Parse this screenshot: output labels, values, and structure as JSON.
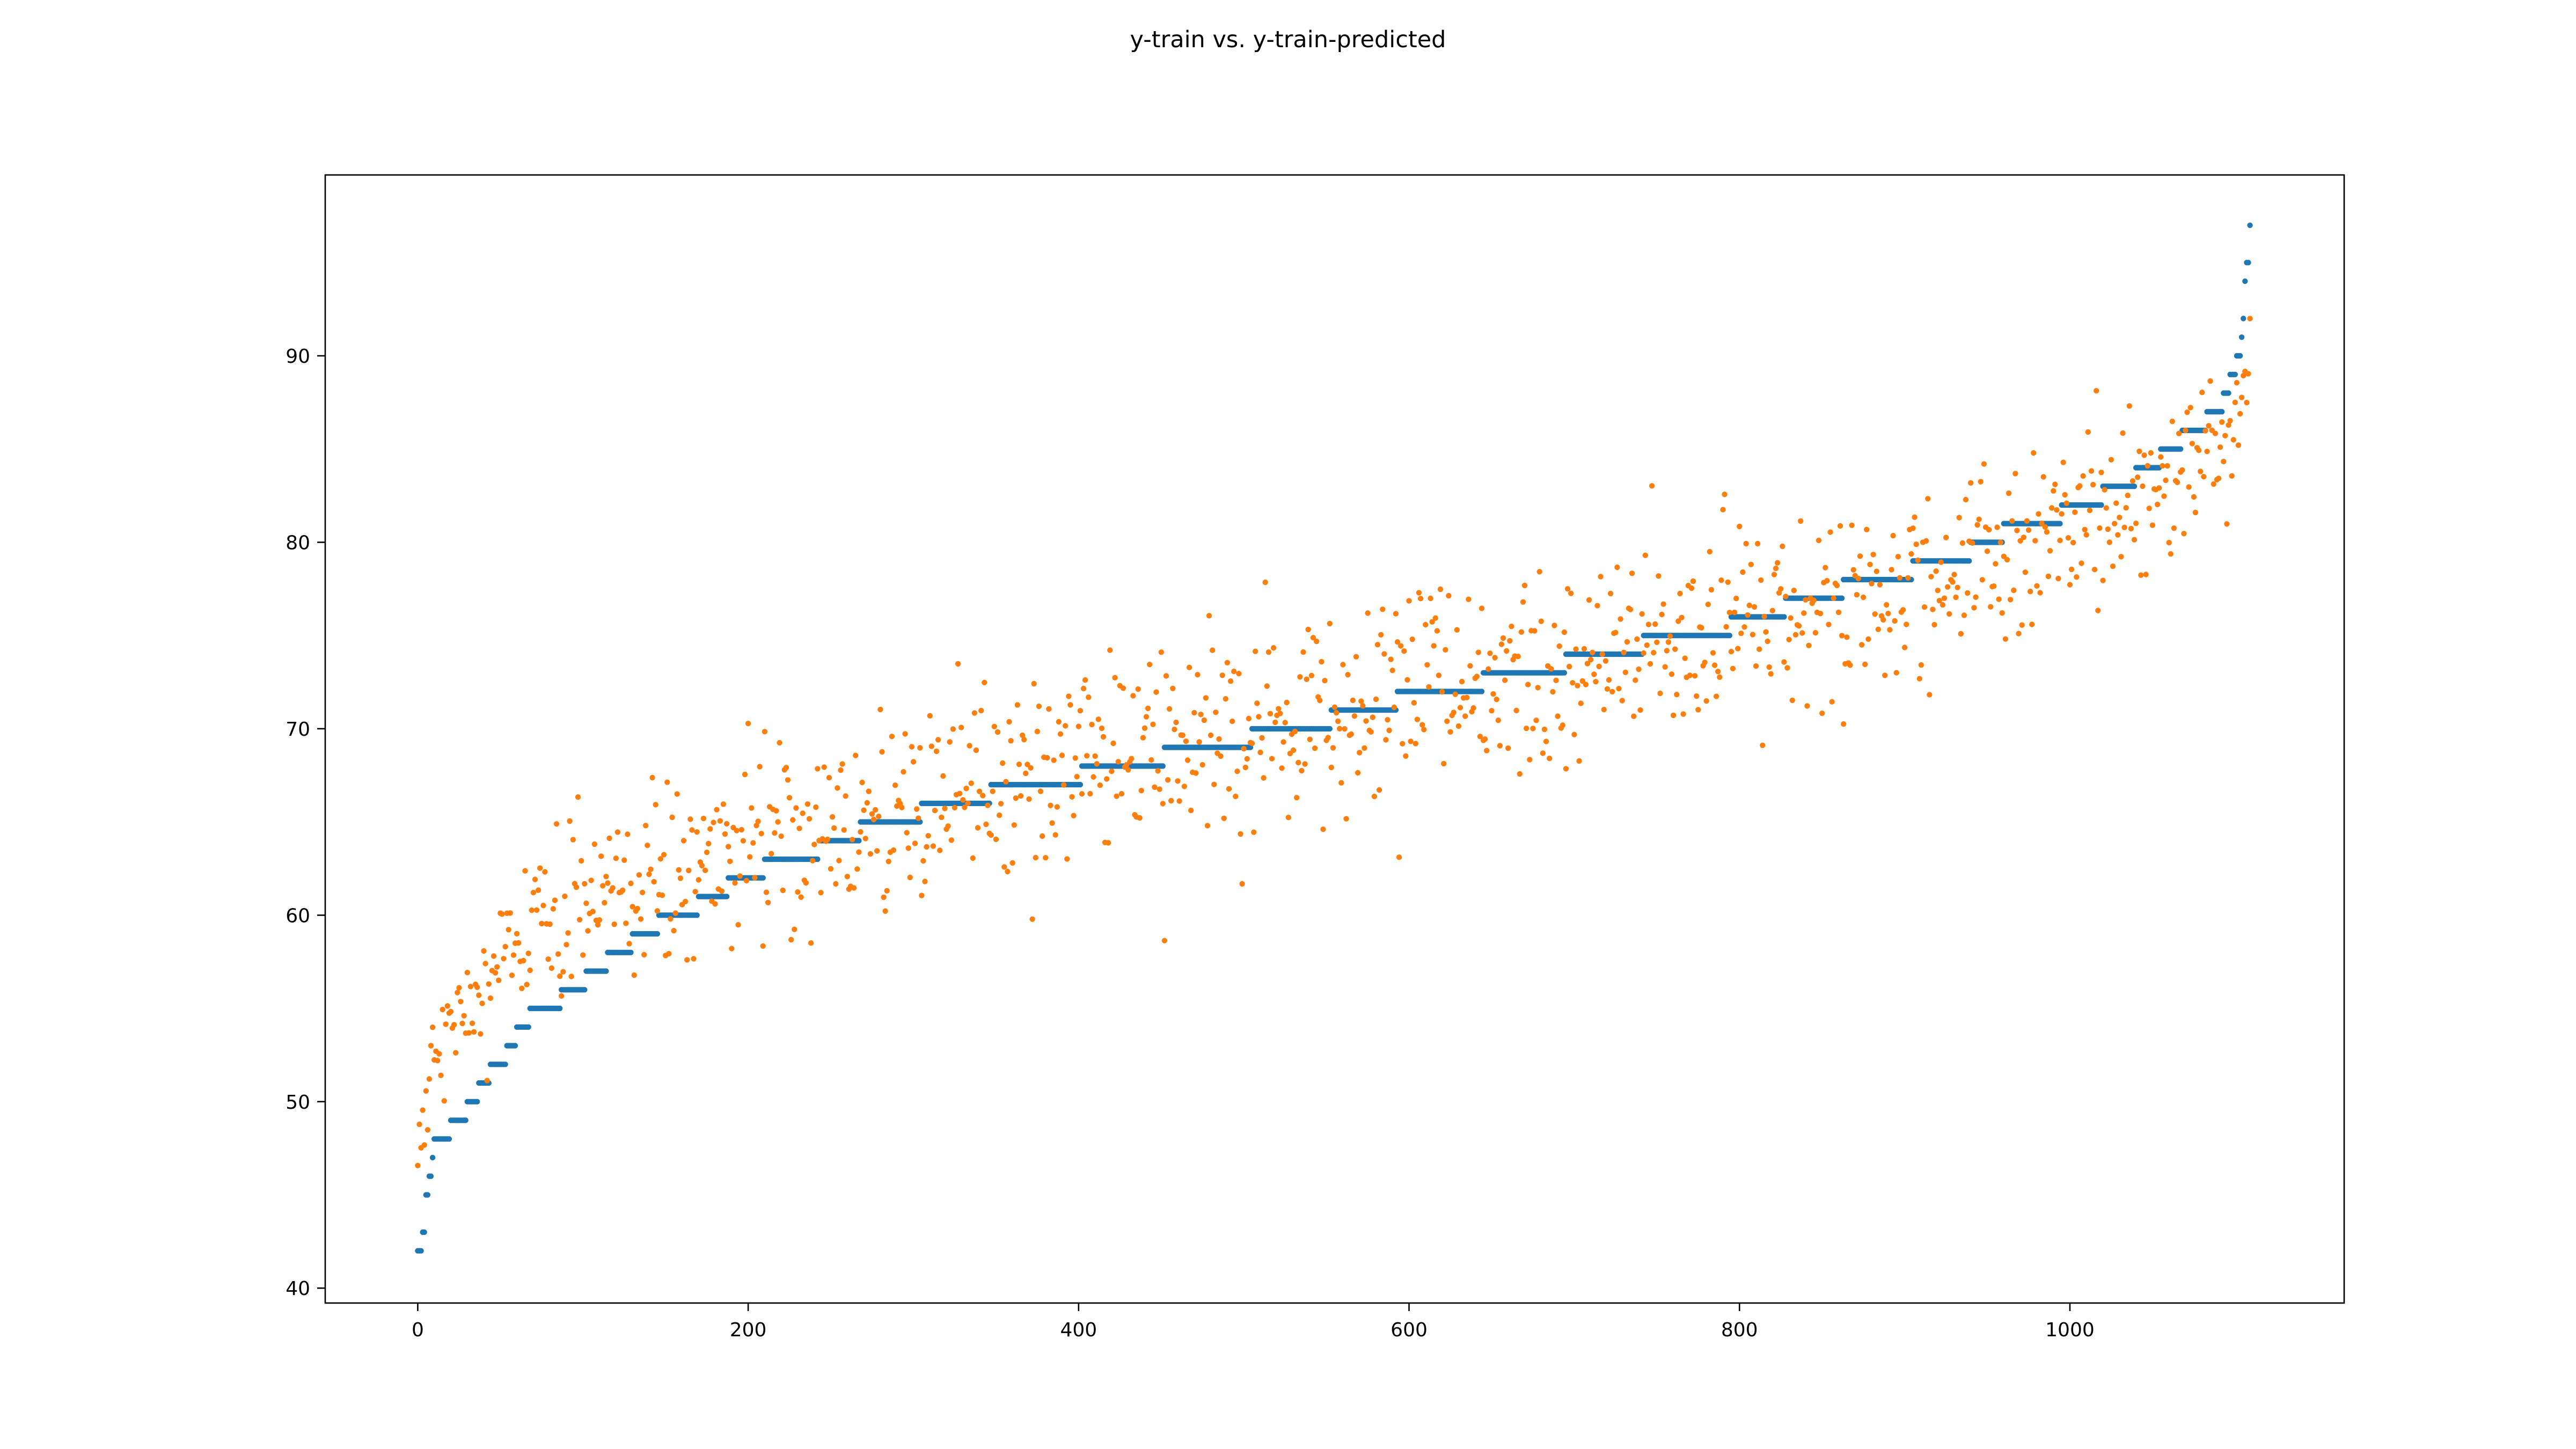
{
  "chart_data": {
    "type": "scatter",
    "title": "y-train vs. y-train-predicted",
    "xlabel": "",
    "ylabel": "",
    "xlim": [
      -56,
      1166
    ],
    "ylim": [
      39.2,
      99.7
    ],
    "x_ticks": [
      0,
      200,
      400,
      600,
      800,
      1000
    ],
    "y_ticks": [
      40,
      50,
      60,
      70,
      80,
      90
    ],
    "grid": false,
    "legend": "none",
    "n_points": 1110,
    "series": [
      {
        "role": "actual",
        "color": "#1f77b4",
        "marker": "dot",
        "profile": [
          [
            0,
            42
          ],
          [
            3,
            43
          ],
          [
            5,
            45
          ],
          [
            7,
            46
          ],
          [
            9,
            47
          ],
          [
            10,
            48
          ],
          [
            20,
            49
          ],
          [
            30,
            50
          ],
          [
            37,
            51
          ],
          [
            44,
            52
          ],
          [
            54,
            53
          ],
          [
            60,
            54
          ],
          [
            68,
            55
          ],
          [
            87,
            56
          ],
          [
            102,
            57
          ],
          [
            115,
            58
          ],
          [
            130,
            59
          ],
          [
            146,
            60
          ],
          [
            170,
            61
          ],
          [
            188,
            62
          ],
          [
            210,
            63
          ],
          [
            243,
            64
          ],
          [
            268,
            65
          ],
          [
            305,
            66
          ],
          [
            347,
            67
          ],
          [
            402,
            68
          ],
          [
            452,
            69
          ],
          [
            505,
            70
          ],
          [
            553,
            71
          ],
          [
            593,
            72
          ],
          [
            645,
            73
          ],
          [
            695,
            74
          ],
          [
            742,
            75
          ],
          [
            795,
            76
          ],
          [
            828,
            77
          ],
          [
            863,
            78
          ],
          [
            905,
            79
          ],
          [
            940,
            80
          ],
          [
            960,
            81
          ],
          [
            995,
            82
          ],
          [
            1020,
            83
          ],
          [
            1040,
            84
          ],
          [
            1055,
            85
          ],
          [
            1068,
            86
          ],
          [
            1083,
            87
          ],
          [
            1093,
            88
          ],
          [
            1097,
            89
          ],
          [
            1101,
            90
          ],
          [
            1104,
            91
          ],
          [
            1105,
            92
          ],
          [
            1106,
            94
          ],
          [
            1107,
            95
          ],
          [
            1109,
            97
          ]
        ]
      },
      {
        "role": "predicted",
        "color": "#ff7f0e",
        "marker": "dot",
        "scatter_spread": 2.6,
        "anchor_points": [
          [
            0,
            45.8
          ],
          [
            2,
            47.2
          ],
          [
            5,
            50.5
          ],
          [
            10,
            53.5
          ],
          [
            20,
            53.5
          ],
          [
            30,
            55.0
          ],
          [
            40,
            56.5
          ],
          [
            60,
            57.5
          ],
          [
            80,
            59.5
          ],
          [
            100,
            60.0
          ],
          [
            150,
            62.0
          ],
          [
            200,
            63.5
          ],
          [
            250,
            65.0
          ],
          [
            300,
            66.0
          ],
          [
            350,
            67.0
          ],
          [
            400,
            68.0
          ],
          [
            450,
            69.0
          ],
          [
            500,
            69.5
          ],
          [
            550,
            70.5
          ],
          [
            600,
            71.5
          ],
          [
            650,
            72.5
          ],
          [
            700,
            73.5
          ],
          [
            750,
            74.5
          ],
          [
            800,
            75.5
          ],
          [
            850,
            76.5
          ],
          [
            900,
            77.5
          ],
          [
            950,
            79.0
          ],
          [
            1000,
            80.5
          ],
          [
            1050,
            82.5
          ],
          [
            1080,
            84.5
          ],
          [
            1100,
            86.5
          ],
          [
            1109,
            89.5
          ]
        ]
      }
    ]
  }
}
